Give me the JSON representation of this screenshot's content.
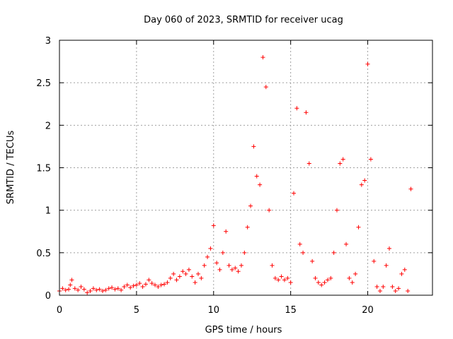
{
  "chart_data": {
    "type": "scatter",
    "title": "Day 060 of 2023, SRMTID for receiver ucag",
    "xlabel": "GPS time / hours",
    "ylabel": "SRMTID / TECUs",
    "xlim": [
      0,
      24.2
    ],
    "ylim": [
      0,
      3
    ],
    "xticks": [
      0,
      5,
      10,
      15,
      20
    ],
    "xtick_labels": [
      "0",
      "5",
      "10",
      "15",
      "20"
    ],
    "yticks": [
      0,
      0.5,
      1,
      1.5,
      2,
      2.5,
      3
    ],
    "ytick_labels": [
      "0",
      "0.5",
      "1",
      "1.5",
      "2",
      "2.5",
      "3"
    ],
    "grid": true,
    "marker": "plus",
    "color": "#ff0000",
    "series": [
      {
        "name": "SRMTID",
        "x": [
          0.0,
          0.2,
          0.4,
          0.6,
          0.7,
          0.8,
          1.0,
          1.2,
          1.4,
          1.6,
          1.8,
          2.0,
          2.2,
          2.4,
          2.6,
          2.8,
          3.0,
          3.2,
          3.4,
          3.6,
          3.8,
          4.0,
          4.2,
          4.4,
          4.6,
          4.8,
          5.0,
          5.2,
          5.4,
          5.6,
          5.8,
          6.0,
          6.2,
          6.4,
          6.6,
          6.8,
          7.0,
          7.2,
          7.4,
          7.6,
          7.8,
          8.0,
          8.2,
          8.4,
          8.6,
          8.8,
          9.0,
          9.2,
          9.4,
          9.6,
          9.8,
          10.0,
          10.2,
          10.4,
          10.6,
          10.8,
          11.0,
          11.2,
          11.4,
          11.6,
          11.8,
          12.0,
          12.2,
          12.4,
          12.6,
          12.8,
          13.0,
          13.2,
          13.4,
          13.6,
          13.8,
          14.0,
          14.2,
          14.4,
          14.6,
          14.8,
          15.0,
          15.2,
          15.4,
          15.6,
          15.8,
          16.0,
          16.2,
          16.4,
          16.6,
          16.8,
          17.0,
          17.2,
          17.4,
          17.6,
          17.8,
          18.0,
          18.2,
          18.4,
          18.6,
          18.8,
          19.0,
          19.2,
          19.4,
          19.6,
          19.8,
          20.0,
          20.2,
          20.4,
          20.6,
          20.8,
          21.0,
          21.2,
          21.4,
          21.6,
          21.8,
          22.0,
          22.2,
          22.4,
          22.6,
          22.8
        ],
        "y": [
          0.05,
          0.08,
          0.06,
          0.07,
          0.12,
          0.18,
          0.08,
          0.06,
          0.1,
          0.07,
          0.03,
          0.05,
          0.08,
          0.06,
          0.07,
          0.05,
          0.06,
          0.08,
          0.09,
          0.07,
          0.08,
          0.06,
          0.1,
          0.12,
          0.09,
          0.11,
          0.12,
          0.14,
          0.1,
          0.13,
          0.18,
          0.14,
          0.12,
          0.1,
          0.12,
          0.13,
          0.15,
          0.2,
          0.25,
          0.18,
          0.22,
          0.28,
          0.25,
          0.3,
          0.22,
          0.15,
          0.25,
          0.2,
          0.35,
          0.45,
          0.55,
          0.82,
          0.38,
          0.3,
          0.5,
          0.75,
          0.35,
          0.3,
          0.32,
          0.28,
          0.35,
          0.5,
          0.8,
          1.05,
          1.75,
          1.4,
          1.3,
          2.8,
          2.45,
          1.0,
          0.35,
          0.2,
          0.18,
          0.22,
          0.18,
          0.2,
          0.15,
          1.2,
          2.2,
          0.6,
          0.5,
          2.15,
          1.55,
          0.4,
          0.2,
          0.15,
          0.12,
          0.15,
          0.18,
          0.2,
          0.5,
          1.0,
          1.55,
          1.6,
          0.6,
          0.2,
          0.15,
          0.25,
          0.8,
          1.3,
          1.35,
          2.72,
          1.6,
          0.4,
          0.1,
          0.05,
          0.1,
          0.35,
          0.55,
          0.1,
          0.05,
          0.08,
          0.25,
          0.3,
          0.05,
          1.25
        ]
      }
    ]
  }
}
